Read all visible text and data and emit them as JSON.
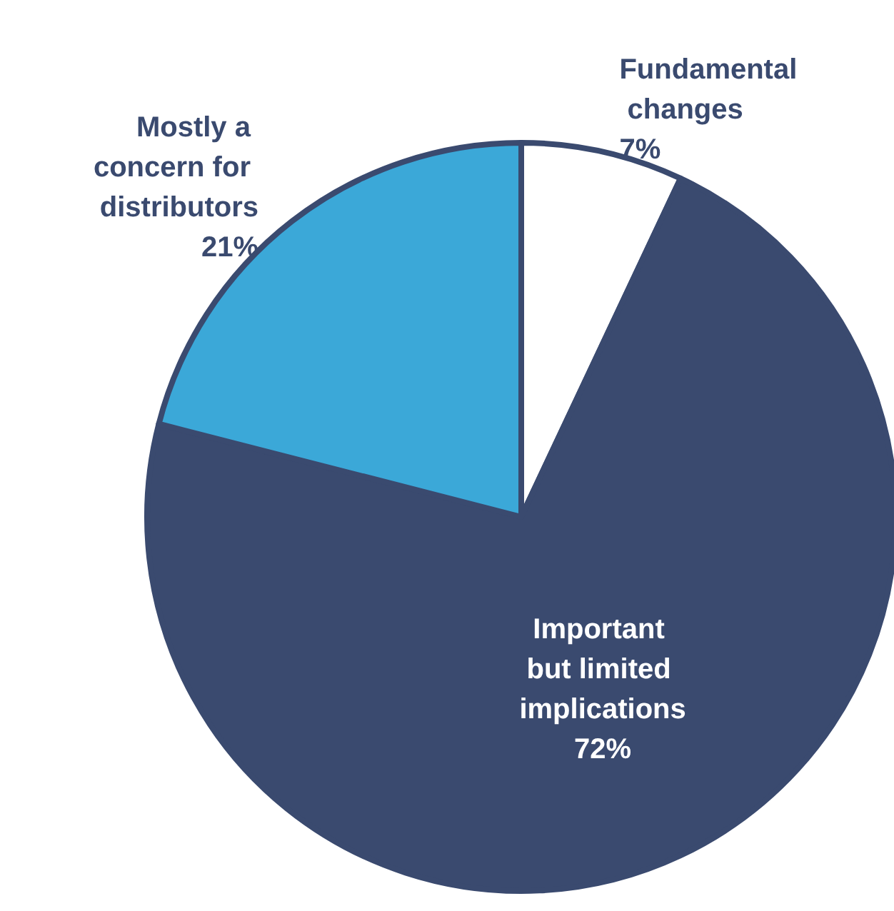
{
  "chart_data": {
    "type": "pie",
    "categories": [
      "Fundamental changes",
      "Important but limited implications",
      "Mostly a concern for distributors"
    ],
    "values": [
      7,
      72,
      21
    ],
    "colors": [
      "#ffffff",
      "#3a4a6f",
      "#3ba8d8"
    ],
    "value_labels": [
      "7%",
      "72%",
      "21%"
    ],
    "legend": false
  }
}
